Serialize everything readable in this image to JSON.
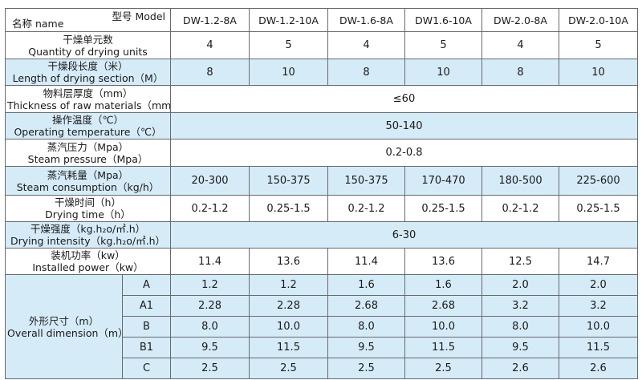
{
  "header": {
    "model_label": "型号 Model",
    "name_label": "名称 name",
    "models": [
      "DW-1.2-8A",
      "DW-1.2-10A",
      "DW-1.6-8A",
      "DW1.6-10A",
      "DW-2.0-8A",
      "DW-2.0-10A"
    ]
  },
  "rows": [
    {
      "cn": "干燥单元数",
      "en": "Quantity of drying units",
      "values": [
        "4",
        "5",
        "4",
        "5",
        "4",
        "5"
      ]
    },
    {
      "cn": "干燥段长度（米）",
      "en": "Length of drying section（M）",
      "values": [
        "8",
        "10",
        "8",
        "10",
        "8",
        "10"
      ]
    },
    {
      "cn": "物料层厚度（mm）",
      "en": "Thickness of raw materials（mm）",
      "merged": "≤60"
    },
    {
      "cn": "操作温度（℃）",
      "en": "Operating temperature（℃）",
      "merged": "50-140"
    },
    {
      "cn": "蒸汽压力（Mpa）",
      "en": "Steam pressure（Mpa）",
      "merged": "0.2-0.8"
    },
    {
      "cn": "蒸汽耗量（Mpa）",
      "en": "Steam consumption（kg/h）",
      "values": [
        "20-300",
        "150-375",
        "150-375",
        "170-470",
        "180-500",
        "225-600"
      ]
    },
    {
      "cn": "干燥时间（h）",
      "en": "Drying time（h）",
      "values": [
        "0.2-1.2",
        "0.25-1.5",
        "0.2-1.2",
        "0.25-1.5",
        "0.2-1.2",
        "0.25-1.5"
      ]
    },
    {
      "cn": "干燥强度（kg.h₂o/㎡.h）",
      "en": "Drying intensity（kg.h₂o/㎡.h）",
      "merged": "6-30"
    },
    {
      "cn": "装机功率（kw）",
      "en": "Installed power（kw）",
      "values": [
        "11.4",
        "13.6",
        "11.4",
        "13.6",
        "12.5",
        "14.7"
      ]
    }
  ],
  "dimension": {
    "cn": "外形尺寸（m）",
    "en": "Overall dimension（m）",
    "rows": [
      {
        "key": "A",
        "values": [
          "1.2",
          "1.2",
          "1.6",
          "1.6",
          "2.0",
          "2.0"
        ]
      },
      {
        "key": "A1",
        "values": [
          "2.28",
          "2.28",
          "2.68",
          "2.68",
          "3.2",
          "3.2"
        ]
      },
      {
        "key": "B",
        "values": [
          "8.0",
          "10.0",
          "8.0",
          "10.0",
          "8.0",
          "10.0"
        ]
      },
      {
        "key": "B1",
        "values": [
          "9.5",
          "11.5",
          "9.5",
          "11.5",
          "9.5",
          "11.5"
        ]
      },
      {
        "key": "C",
        "values": [
          "2.5",
          "2.5",
          "2.5",
          "2.5",
          "2.6",
          "2.6"
        ]
      }
    ]
  },
  "colors": {
    "blue_band": "#d6ebf8",
    "border": "#666a70"
  }
}
